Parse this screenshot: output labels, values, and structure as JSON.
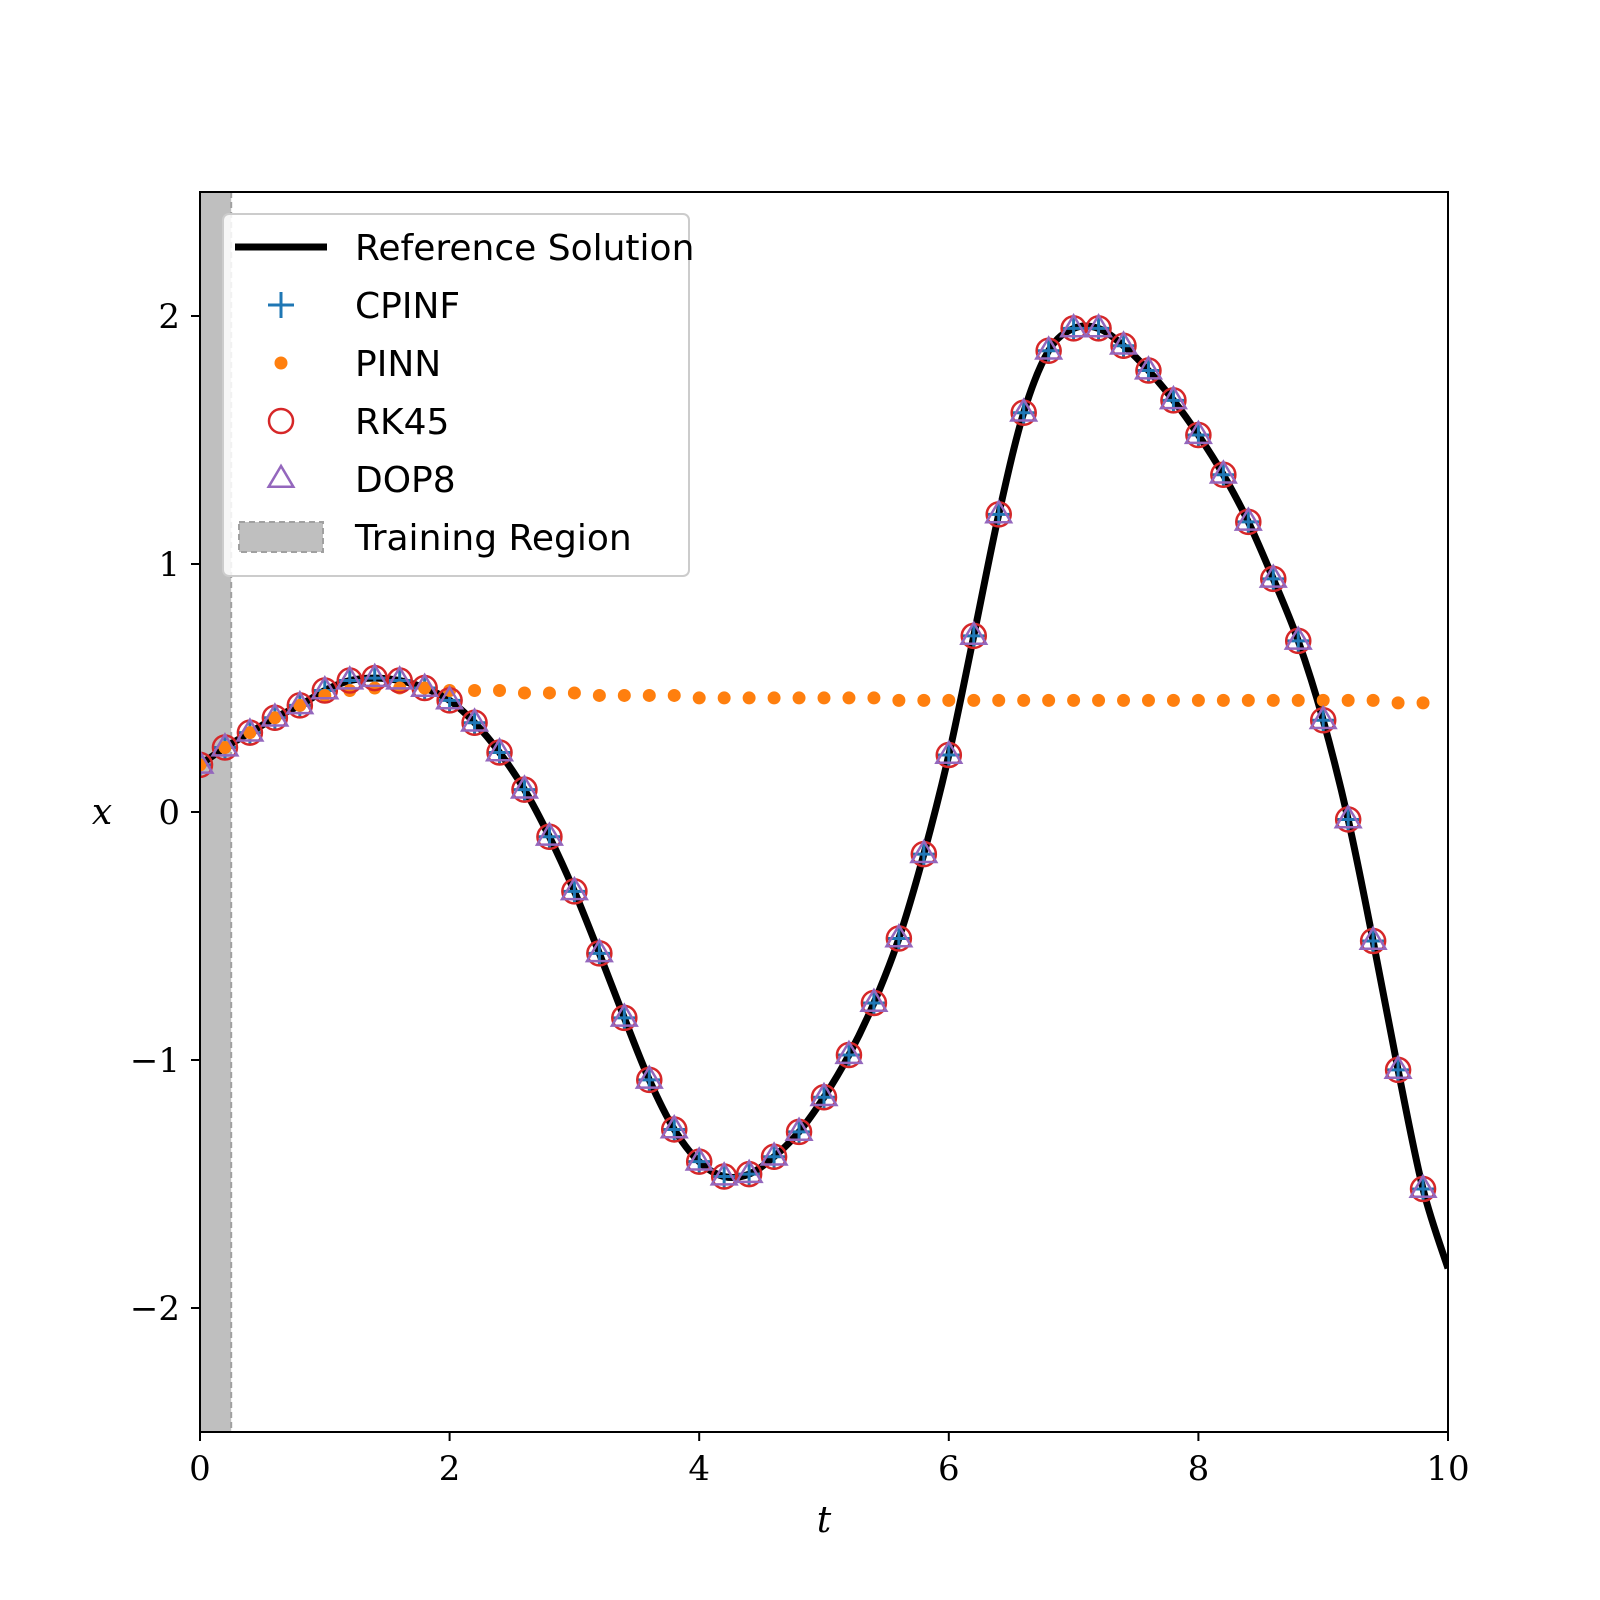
{
  "chart_data": {
    "type": "line",
    "title": "",
    "xlabel": "t",
    "ylabel": "x",
    "xlim": [
      0,
      10
    ],
    "ylim": [
      -2.5,
      2.5
    ],
    "xticks": [
      0,
      2,
      4,
      6,
      8,
      10
    ],
    "yticks": [
      -2,
      -1,
      0,
      1,
      2
    ],
    "xtick_labels": [
      "0",
      "2",
      "4",
      "6",
      "8",
      "10"
    ],
    "ytick_labels": [
      "−2",
      "−1",
      "0",
      "1",
      "2"
    ],
    "grid": false,
    "legend_position": "upper-left",
    "training_region": {
      "x_start": 0,
      "x_end": 0.25,
      "color": "#bfbfbf"
    },
    "colors": {
      "reference": "#000000",
      "cpinf": "#1f77b4",
      "pinn": "#ff7f0e",
      "rk45": "#d62728",
      "dop8": "#9467bd"
    },
    "series": [
      {
        "name": "Reference Solution",
        "kind": "line",
        "x": [
          0,
          0.2,
          0.4,
          0.6,
          0.8,
          1.0,
          1.2,
          1.4,
          1.6,
          1.8,
          2.0,
          2.2,
          2.4,
          2.6,
          2.8,
          3.0,
          3.2,
          3.4,
          3.6,
          3.8,
          4.0,
          4.2,
          4.4,
          4.6,
          4.8,
          5.0,
          5.2,
          5.4,
          5.6,
          5.8,
          6.0,
          6.2,
          6.4,
          6.6,
          6.8,
          7.0,
          7.2,
          7.4,
          7.6,
          7.8,
          8.0,
          8.2,
          8.4,
          8.6,
          8.8,
          9.0,
          9.2,
          9.4,
          9.6,
          9.8,
          10.0
        ],
        "y": [
          0.19,
          0.26,
          0.32,
          0.38,
          0.43,
          0.49,
          0.53,
          0.54,
          0.53,
          0.5,
          0.45,
          0.36,
          0.24,
          0.09,
          -0.1,
          -0.32,
          -0.57,
          -0.83,
          -1.08,
          -1.28,
          -1.41,
          -1.47,
          -1.46,
          -1.39,
          -1.29,
          -1.15,
          -0.98,
          -0.77,
          -0.51,
          -0.17,
          0.23,
          0.71,
          1.2,
          1.61,
          1.86,
          1.95,
          1.95,
          1.88,
          1.78,
          1.66,
          1.52,
          1.36,
          1.17,
          0.94,
          0.69,
          0.37,
          -0.03,
          -0.52,
          -1.04,
          -1.52,
          -1.84
        ]
      },
      {
        "name": "CPINF",
        "kind": "marker-plus",
        "x": [
          0,
          0.2,
          0.4,
          0.6,
          0.8,
          1.0,
          1.2,
          1.4,
          1.6,
          1.8,
          2.0,
          2.2,
          2.4,
          2.6,
          2.8,
          3.0,
          3.2,
          3.4,
          3.6,
          3.8,
          4.0,
          4.2,
          4.4,
          4.6,
          4.8,
          5.0,
          5.2,
          5.4,
          5.6,
          5.8,
          6.0,
          6.2,
          6.4,
          6.6,
          6.8,
          7.0,
          7.2,
          7.4,
          7.6,
          7.8,
          8.0,
          8.2,
          8.4,
          8.6,
          8.8,
          9.0,
          9.2,
          9.4,
          9.6,
          9.8
        ],
        "y": [
          0.19,
          0.26,
          0.32,
          0.38,
          0.43,
          0.49,
          0.53,
          0.54,
          0.53,
          0.5,
          0.45,
          0.36,
          0.24,
          0.09,
          -0.1,
          -0.32,
          -0.57,
          -0.83,
          -1.08,
          -1.28,
          -1.41,
          -1.47,
          -1.46,
          -1.39,
          -1.29,
          -1.15,
          -0.98,
          -0.77,
          -0.51,
          -0.17,
          0.23,
          0.71,
          1.2,
          1.61,
          1.86,
          1.95,
          1.95,
          1.88,
          1.78,
          1.66,
          1.52,
          1.36,
          1.17,
          0.94,
          0.69,
          0.37,
          -0.03,
          -0.52,
          -1.04,
          -1.52
        ]
      },
      {
        "name": "PINN",
        "kind": "marker-dot",
        "x": [
          0,
          0.2,
          0.4,
          0.6,
          0.8,
          1.0,
          1.2,
          1.4,
          1.6,
          1.8,
          2.0,
          2.2,
          2.4,
          2.6,
          2.8,
          3.0,
          3.2,
          3.4,
          3.6,
          3.8,
          4.0,
          4.2,
          4.4,
          4.6,
          4.8,
          5.0,
          5.2,
          5.4,
          5.6,
          5.8,
          6.0,
          6.2,
          6.4,
          6.6,
          6.8,
          7.0,
          7.2,
          7.4,
          7.6,
          7.8,
          8.0,
          8.2,
          8.4,
          8.6,
          8.8,
          9.0,
          9.2,
          9.4,
          9.6,
          9.8
        ],
        "y": [
          0.19,
          0.26,
          0.32,
          0.38,
          0.43,
          0.47,
          0.49,
          0.5,
          0.5,
          0.5,
          0.49,
          0.49,
          0.49,
          0.48,
          0.48,
          0.48,
          0.47,
          0.47,
          0.47,
          0.47,
          0.46,
          0.46,
          0.46,
          0.46,
          0.46,
          0.46,
          0.46,
          0.46,
          0.45,
          0.45,
          0.45,
          0.45,
          0.45,
          0.45,
          0.45,
          0.45,
          0.45,
          0.45,
          0.45,
          0.45,
          0.45,
          0.45,
          0.45,
          0.45,
          0.45,
          0.45,
          0.45,
          0.45,
          0.44,
          0.44
        ]
      },
      {
        "name": "RK45",
        "kind": "marker-circle",
        "x": [
          0,
          0.2,
          0.4,
          0.6,
          0.8,
          1.0,
          1.2,
          1.4,
          1.6,
          1.8,
          2.0,
          2.2,
          2.4,
          2.6,
          2.8,
          3.0,
          3.2,
          3.4,
          3.6,
          3.8,
          4.0,
          4.2,
          4.4,
          4.6,
          4.8,
          5.0,
          5.2,
          5.4,
          5.6,
          5.8,
          6.0,
          6.2,
          6.4,
          6.6,
          6.8,
          7.0,
          7.2,
          7.4,
          7.6,
          7.8,
          8.0,
          8.2,
          8.4,
          8.6,
          8.8,
          9.0,
          9.2,
          9.4,
          9.6,
          9.8
        ],
        "y": [
          0.19,
          0.26,
          0.32,
          0.38,
          0.43,
          0.49,
          0.53,
          0.54,
          0.53,
          0.5,
          0.45,
          0.36,
          0.24,
          0.09,
          -0.1,
          -0.32,
          -0.57,
          -0.83,
          -1.08,
          -1.28,
          -1.41,
          -1.47,
          -1.46,
          -1.39,
          -1.29,
          -1.15,
          -0.98,
          -0.77,
          -0.51,
          -0.17,
          0.23,
          0.71,
          1.2,
          1.61,
          1.86,
          1.95,
          1.95,
          1.88,
          1.78,
          1.66,
          1.52,
          1.36,
          1.17,
          0.94,
          0.69,
          0.37,
          -0.03,
          -0.52,
          -1.04,
          -1.52
        ]
      },
      {
        "name": "DOP8",
        "kind": "marker-triangle",
        "x": [
          0,
          0.2,
          0.4,
          0.6,
          0.8,
          1.0,
          1.2,
          1.4,
          1.6,
          1.8,
          2.0,
          2.2,
          2.4,
          2.6,
          2.8,
          3.0,
          3.2,
          3.4,
          3.6,
          3.8,
          4.0,
          4.2,
          4.4,
          4.6,
          4.8,
          5.0,
          5.2,
          5.4,
          5.6,
          5.8,
          6.0,
          6.2,
          6.4,
          6.6,
          6.8,
          7.0,
          7.2,
          7.4,
          7.6,
          7.8,
          8.0,
          8.2,
          8.4,
          8.6,
          8.8,
          9.0,
          9.2,
          9.4,
          9.6,
          9.8
        ],
        "y": [
          0.19,
          0.26,
          0.32,
          0.38,
          0.43,
          0.49,
          0.53,
          0.54,
          0.53,
          0.5,
          0.45,
          0.36,
          0.24,
          0.09,
          -0.1,
          -0.32,
          -0.57,
          -0.83,
          -1.08,
          -1.28,
          -1.41,
          -1.47,
          -1.46,
          -1.39,
          -1.29,
          -1.15,
          -0.98,
          -0.77,
          -0.51,
          -0.17,
          0.23,
          0.71,
          1.2,
          1.61,
          1.86,
          1.95,
          1.95,
          1.88,
          1.78,
          1.66,
          1.52,
          1.36,
          1.17,
          0.94,
          0.69,
          0.37,
          -0.03,
          -0.52,
          -1.04,
          -1.52
        ]
      }
    ],
    "legend": [
      {
        "label": "Reference Solution",
        "kind": "line"
      },
      {
        "label": "CPINF",
        "kind": "marker-plus"
      },
      {
        "label": "PINN",
        "kind": "marker-dot"
      },
      {
        "label": "RK45",
        "kind": "marker-circle"
      },
      {
        "label": "DOP8",
        "kind": "marker-triangle"
      },
      {
        "label": "Training Region",
        "kind": "patch"
      }
    ]
  }
}
